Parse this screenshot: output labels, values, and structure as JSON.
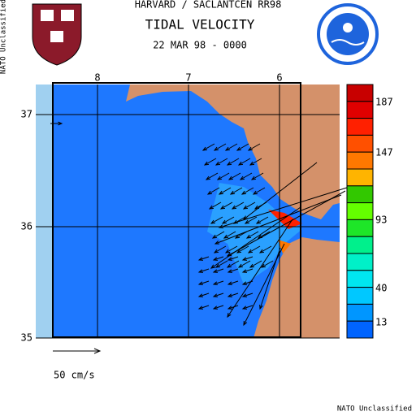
{
  "header": {
    "line1": "HARVARD / SACLANTCEN RR98",
    "title": "TIDAL VELOCITY",
    "date": "22 MAR 98 - 0000"
  },
  "map": {
    "lon_ticks": [
      8,
      7,
      6
    ],
    "lat_ticks": [
      37,
      36,
      35
    ]
  },
  "colorbar": {
    "colors": [
      "#c80000",
      "#e00000",
      "#ff2000",
      "#ff5000",
      "#ff7800",
      "#ffb400",
      "#32c800",
      "#64ff00",
      "#1ee628",
      "#00f08c",
      "#00f0c8",
      "#00e6f0",
      "#00c8ff",
      "#0096ff",
      "#0064ff"
    ],
    "labels": [
      187,
      147,
      93,
      40,
      13
    ]
  },
  "scale_label": "50 cm/s",
  "classification_side": "NATO Unclassified",
  "classification_bottom": "NATO Unclassified"
}
